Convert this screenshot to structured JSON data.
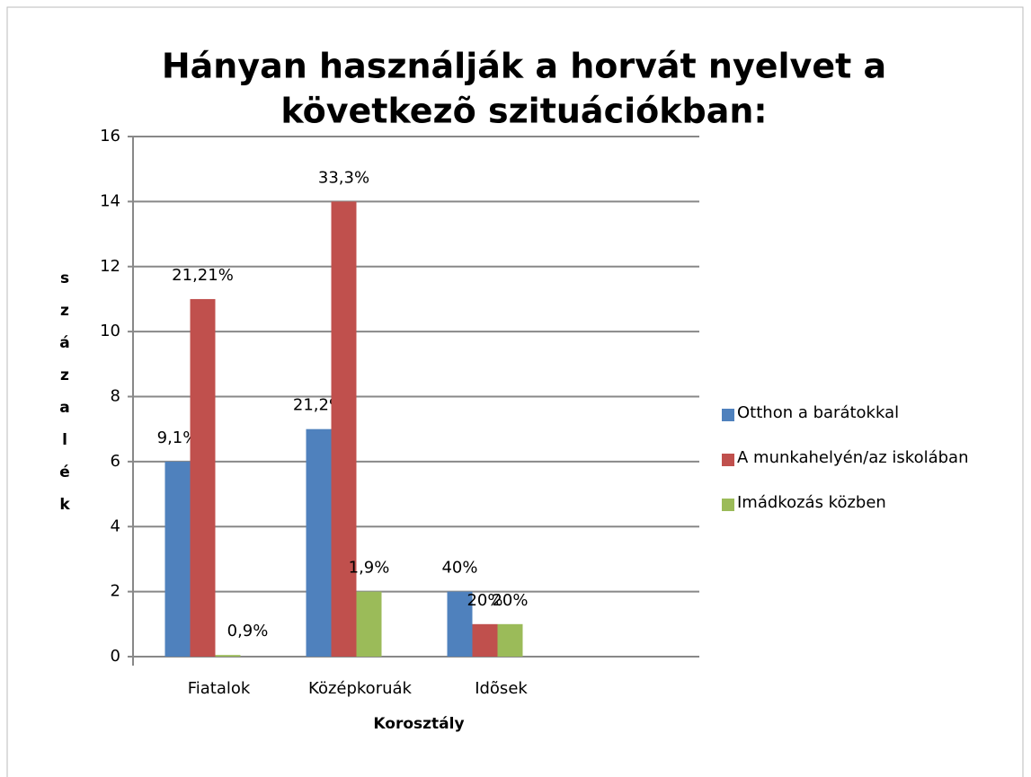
{
  "chart_data": {
    "type": "bar",
    "title": [
      "Hányan használják a horvát nyelvet a",
      "következõ szituációkban:"
    ],
    "x_label": "Korosztály",
    "y_label": "százalék",
    "categories": [
      "Fiatalok",
      "Középkoruák",
      "Idõsek"
    ],
    "series": [
      {
        "name": "Otthon a barátokkal",
        "color": "#4f81bd",
        "values": [
          6,
          7,
          2
        ],
        "point_labels": [
          "9,1%",
          "21,2%",
          "40%"
        ]
      },
      {
        "name": "A munkahelyén/az iskolában",
        "color": "#c0504d",
        "values": [
          11,
          14,
          1
        ],
        "point_labels": [
          "21,21%",
          "33,3%",
          "20%"
        ]
      },
      {
        "name": "Imádkozás közben",
        "color": "#9bbb59",
        "values": [
          0.05,
          2,
          1
        ],
        "point_labels": [
          "0,9%",
          "1,9%",
          "20%"
        ]
      }
    ],
    "ylim": [
      0,
      16
    ],
    "yticks": [
      0,
      2,
      4,
      6,
      8,
      10,
      12,
      14,
      16
    ],
    "grid": true,
    "legend": "right"
  }
}
